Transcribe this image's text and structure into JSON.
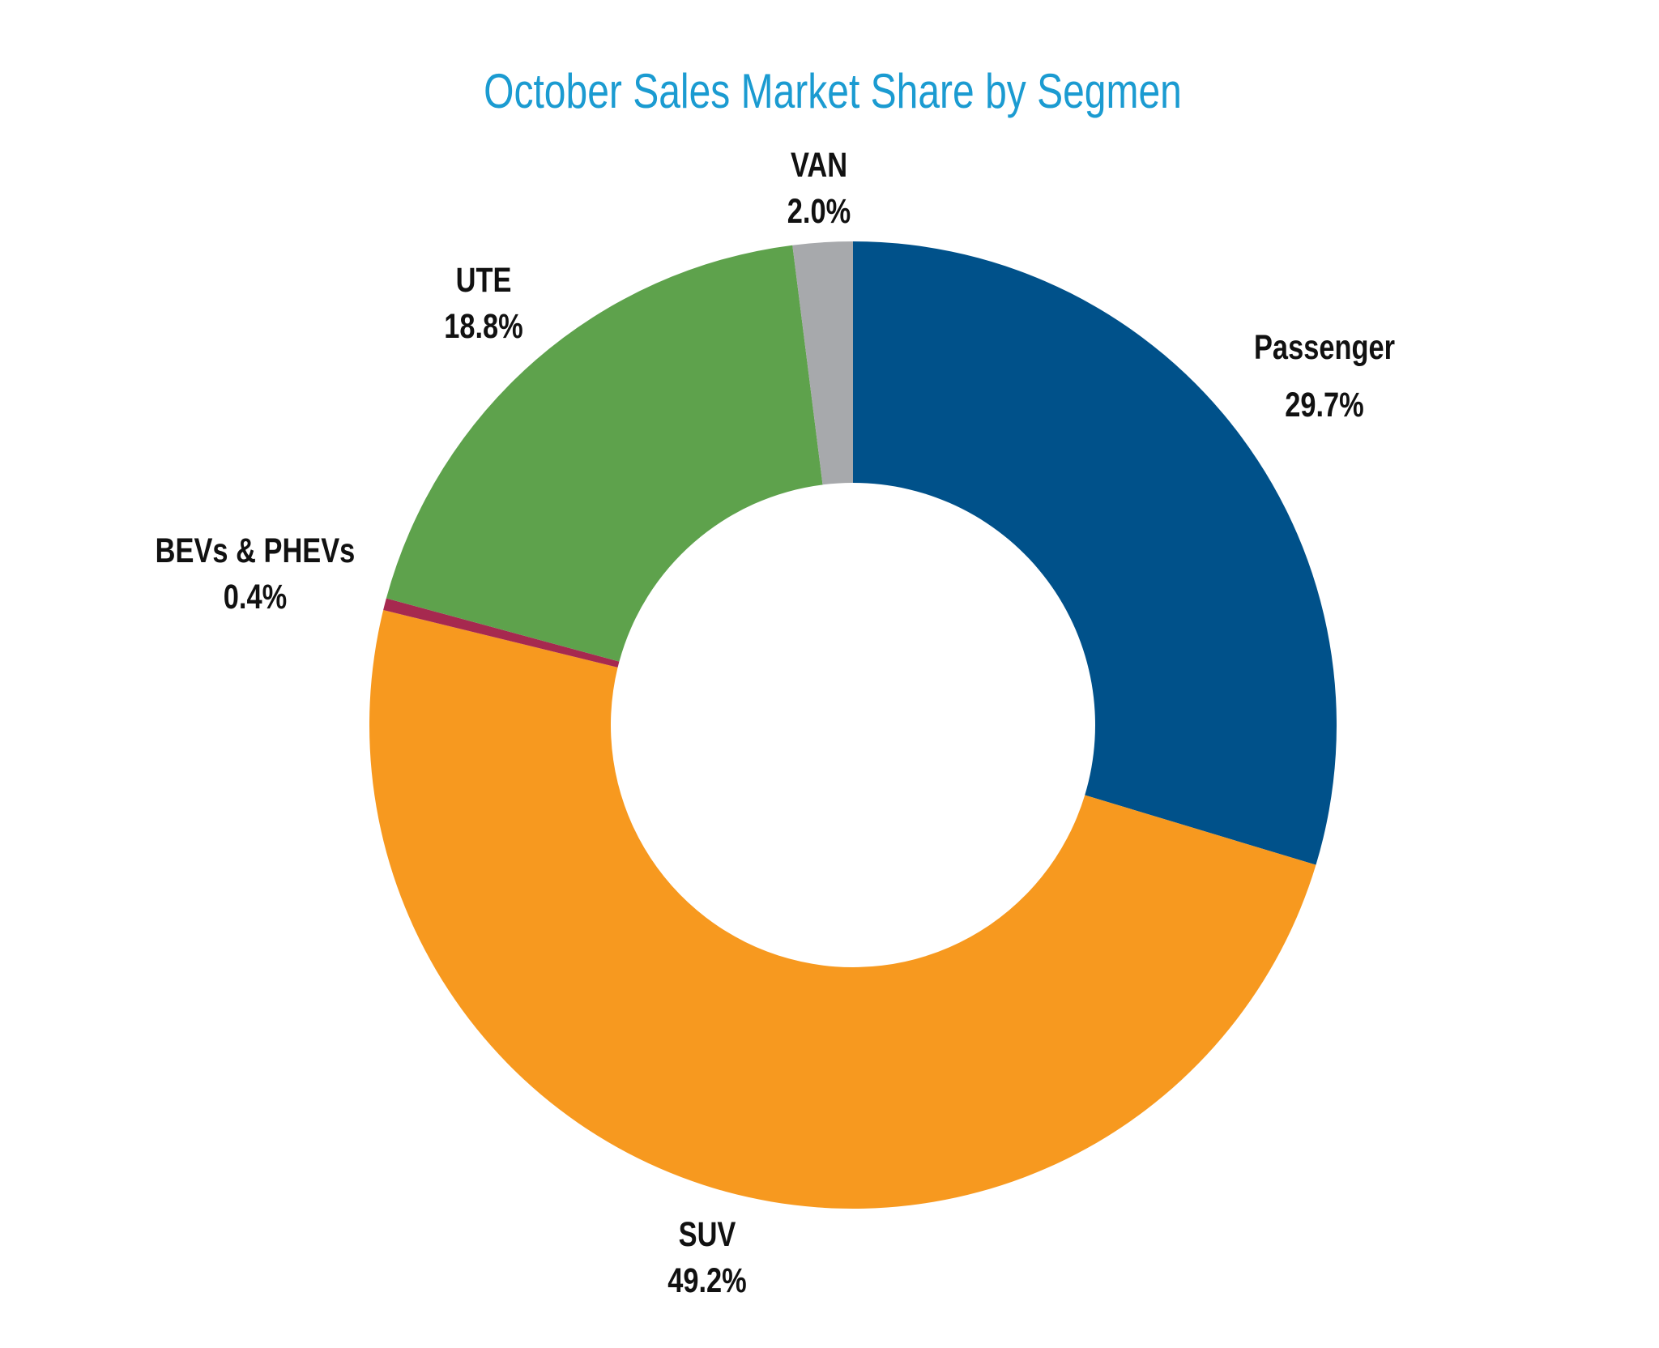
{
  "chart_data": {
    "type": "pie",
    "donut": true,
    "title": "October Sales Market Share by Segmen",
    "unit": "%",
    "start": "top, clockwise",
    "slices": [
      {
        "name": "Passenger",
        "value": 29.7,
        "label": "29.7%",
        "color": "#00518a"
      },
      {
        "name": "SUV",
        "value": 49.2,
        "label": "49.2%",
        "color": "#f7991f"
      },
      {
        "name": "BEVs & PHEVs",
        "value": 0.4,
        "label": "0.4%",
        "color": "#a6294f"
      },
      {
        "name": "UTE",
        "value": 18.8,
        "label": "18.8%",
        "color": "#5ea24c"
      },
      {
        "name": "VAN",
        "value": 2.0,
        "label": "2.0%",
        "color": "#a7a9ac"
      }
    ],
    "title_color": "#1b9bd1"
  }
}
